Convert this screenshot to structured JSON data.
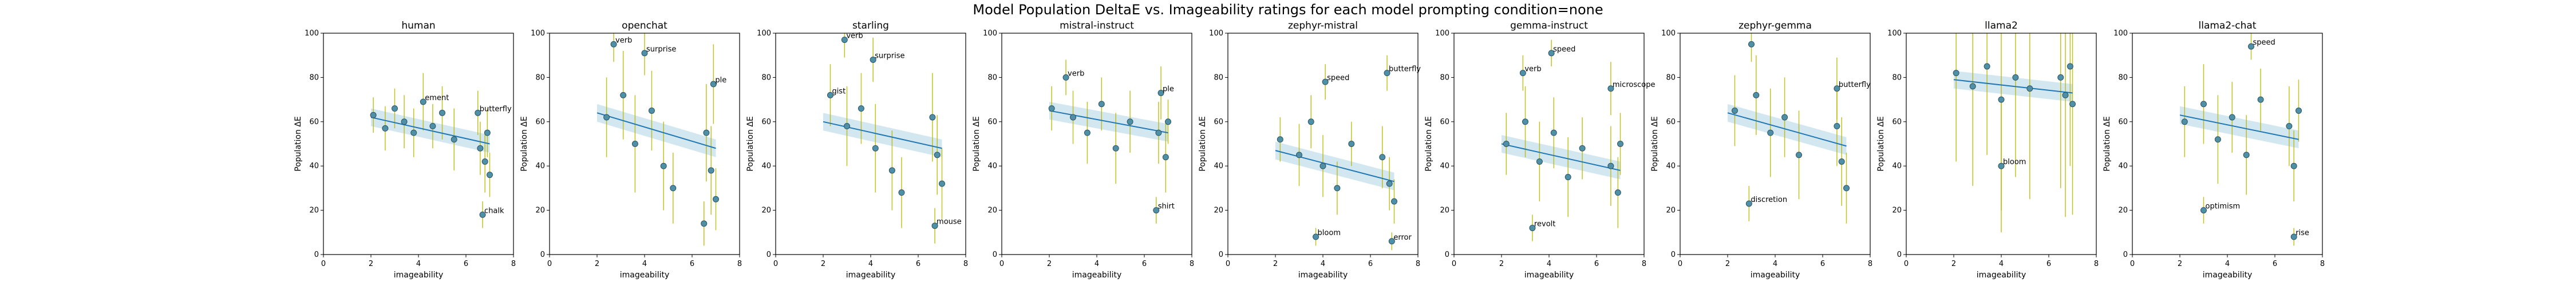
{
  "figure": {
    "suptitle": "Model Population DeltaE vs. Imageability ratings for each model prompting condition=none"
  },
  "colors": {
    "point": "#4f90a6",
    "point_edge": "#2b5566",
    "errorbar": "#b8b800",
    "fit_line": "#1f77b4",
    "ci_band": "#9ecae1"
  },
  "chart_data": [
    {
      "type": "scatter",
      "title": "human",
      "xlabel": "imageability",
      "ylabel": "Population ΔE",
      "xlim": [
        0,
        8
      ],
      "ylim": [
        0,
        100
      ],
      "xticks": [
        "0",
        "2",
        "4",
        "6",
        "8"
      ],
      "yticks": [
        "0",
        "20",
        "40",
        "60",
        "80",
        "100"
      ],
      "fit": {
        "x": [
          2,
          7
        ],
        "y": [
          62,
          50
        ]
      },
      "points": [
        {
          "word": "",
          "x": 2.1,
          "y": 63,
          "err": 8
        },
        {
          "word": "",
          "x": 2.6,
          "y": 57,
          "err": 10
        },
        {
          "word": "",
          "x": 3.0,
          "y": 66,
          "err": 9
        },
        {
          "word": "",
          "x": 3.4,
          "y": 60,
          "err": 12
        },
        {
          "word": "",
          "x": 3.8,
          "y": 55,
          "err": 11
        },
        {
          "word": "ement",
          "x": 4.2,
          "y": 69,
          "err": 13
        },
        {
          "word": "",
          "x": 4.6,
          "y": 58,
          "err": 10
        },
        {
          "word": "",
          "x": 5.0,
          "y": 64,
          "err": 12
        },
        {
          "word": "",
          "x": 5.5,
          "y": 52,
          "err": 14
        },
        {
          "word": "butterfly",
          "x": 6.5,
          "y": 64,
          "err": 10
        },
        {
          "word": "",
          "x": 6.6,
          "y": 48,
          "err": 12
        },
        {
          "word": "",
          "x": 6.8,
          "y": 42,
          "err": 14
        },
        {
          "word": "",
          "x": 6.9,
          "y": 55,
          "err": 11
        },
        {
          "word": "",
          "x": 7.0,
          "y": 36,
          "err": 10
        },
        {
          "word": "chalk",
          "x": 6.7,
          "y": 18,
          "err": 6
        }
      ]
    },
    {
      "type": "scatter",
      "title": "openchat",
      "xlabel": "imageability",
      "ylabel": "Population ΔE",
      "xlim": [
        0,
        8
      ],
      "ylim": [
        0,
        100
      ],
      "xticks": [
        "0",
        "2",
        "4",
        "6",
        "8"
      ],
      "yticks": [
        "0",
        "20",
        "40",
        "60",
        "80",
        "100"
      ],
      "fit": {
        "x": [
          2,
          7
        ],
        "y": [
          64,
          48
        ]
      },
      "points": [
        {
          "word": "verb",
          "x": 2.7,
          "y": 95,
          "err": 8
        },
        {
          "word": "surprise",
          "x": 4.0,
          "y": 91,
          "err": 10
        },
        {
          "word": "",
          "x": 2.4,
          "y": 62,
          "err": 18
        },
        {
          "word": "",
          "x": 3.1,
          "y": 72,
          "err": 20
        },
        {
          "word": "",
          "x": 3.6,
          "y": 50,
          "err": 22
        },
        {
          "word": "",
          "x": 4.3,
          "y": 65,
          "err": 18
        },
        {
          "word": "",
          "x": 4.8,
          "y": 40,
          "err": 20
        },
        {
          "word": "",
          "x": 5.2,
          "y": 30,
          "err": 16
        },
        {
          "word": "ple",
          "x": 6.9,
          "y": 77,
          "err": 18
        },
        {
          "word": "",
          "x": 6.6,
          "y": 55,
          "err": 22
        },
        {
          "word": "",
          "x": 6.8,
          "y": 38,
          "err": 20
        },
        {
          "word": "",
          "x": 7.0,
          "y": 25,
          "err": 14
        },
        {
          "word": "",
          "x": 6.5,
          "y": 14,
          "err": 10
        }
      ]
    },
    {
      "type": "scatter",
      "title": "starling",
      "xlabel": "imageability",
      "ylabel": "Population ΔE",
      "xlim": [
        0,
        8
      ],
      "ylim": [
        0,
        100
      ],
      "xticks": [
        "0",
        "2",
        "4",
        "6",
        "8"
      ],
      "yticks": [
        "0",
        "20",
        "40",
        "60",
        "80",
        "100"
      ],
      "fit": {
        "x": [
          2,
          7
        ],
        "y": [
          60,
          48
        ]
      },
      "points": [
        {
          "word": "verb",
          "x": 2.9,
          "y": 97,
          "err": 8
        },
        {
          "word": "surprise",
          "x": 4.1,
          "y": 88,
          "err": 10
        },
        {
          "word": "gist",
          "x": 2.3,
          "y": 72,
          "err": 14
        },
        {
          "word": "",
          "x": 3.0,
          "y": 58,
          "err": 18
        },
        {
          "word": "",
          "x": 3.6,
          "y": 66,
          "err": 16
        },
        {
          "word": "",
          "x": 4.2,
          "y": 48,
          "err": 20
        },
        {
          "word": "",
          "x": 4.9,
          "y": 38,
          "err": 18
        },
        {
          "word": "",
          "x": 5.3,
          "y": 28,
          "err": 16
        },
        {
          "word": "",
          "x": 6.6,
          "y": 62,
          "err": 20
        },
        {
          "word": "",
          "x": 6.8,
          "y": 45,
          "err": 18
        },
        {
          "word": "",
          "x": 7.0,
          "y": 32,
          "err": 16
        },
        {
          "word": "mouse",
          "x": 6.7,
          "y": 13,
          "err": 8
        }
      ]
    },
    {
      "type": "scatter",
      "title": "mistral-instruct",
      "xlabel": "imageability",
      "ylabel": "Population ΔE",
      "xlim": [
        0,
        8
      ],
      "ylim": [
        0,
        100
      ],
      "xticks": [
        "0",
        "2",
        "4",
        "6",
        "8"
      ],
      "yticks": [
        "0",
        "20",
        "40",
        "60",
        "80",
        "100"
      ],
      "fit": {
        "x": [
          2,
          7
        ],
        "y": [
          65,
          55
        ]
      },
      "points": [
        {
          "word": "verb",
          "x": 2.7,
          "y": 80,
          "err": 8
        },
        {
          "word": "",
          "x": 2.1,
          "y": 66,
          "err": 10
        },
        {
          "word": "",
          "x": 3.0,
          "y": 62,
          "err": 12
        },
        {
          "word": "",
          "x": 3.6,
          "y": 55,
          "err": 14
        },
        {
          "word": "",
          "x": 4.2,
          "y": 68,
          "err": 12
        },
        {
          "word": "",
          "x": 4.8,
          "y": 48,
          "err": 16
        },
        {
          "word": "",
          "x": 5.4,
          "y": 60,
          "err": 14
        },
        {
          "word": "ple",
          "x": 6.7,
          "y": 73,
          "err": 12
        },
        {
          "word": "",
          "x": 6.6,
          "y": 55,
          "err": 14
        },
        {
          "word": "",
          "x": 6.9,
          "y": 44,
          "err": 16
        },
        {
          "word": "",
          "x": 7.0,
          "y": 60,
          "err": 10
        },
        {
          "word": "shirt",
          "x": 6.5,
          "y": 20,
          "err": 6
        }
      ]
    },
    {
      "type": "scatter",
      "title": "zephyr-mistral",
      "xlabel": "imageability",
      "ylabel": "Population ΔE",
      "xlim": [
        0,
        8
      ],
      "ylim": [
        0,
        100
      ],
      "xticks": [
        "0",
        "2",
        "4",
        "6",
        "8"
      ],
      "yticks": [
        "0",
        "20",
        "40",
        "60",
        "80",
        "100"
      ],
      "fit": {
        "x": [
          2,
          7
        ],
        "y": [
          47,
          33
        ]
      },
      "points": [
        {
          "word": "speed",
          "x": 4.1,
          "y": 78,
          "err": 8
        },
        {
          "word": "butterfly",
          "x": 6.7,
          "y": 82,
          "err": 8
        },
        {
          "word": "",
          "x": 2.2,
          "y": 52,
          "err": 10
        },
        {
          "word": "",
          "x": 3.0,
          "y": 45,
          "err": 14
        },
        {
          "word": "",
          "x": 3.5,
          "y": 60,
          "err": 12
        },
        {
          "word": "",
          "x": 4.0,
          "y": 40,
          "err": 14
        },
        {
          "word": "",
          "x": 4.6,
          "y": 30,
          "err": 12
        },
        {
          "word": "",
          "x": 5.2,
          "y": 50,
          "err": 10
        },
        {
          "word": "",
          "x": 6.5,
          "y": 44,
          "err": 14
        },
        {
          "word": "",
          "x": 6.8,
          "y": 32,
          "err": 12
        },
        {
          "word": "",
          "x": 7.0,
          "y": 24,
          "err": 10
        },
        {
          "word": "bloom",
          "x": 3.7,
          "y": 8,
          "err": 4
        },
        {
          "word": "error",
          "x": 6.9,
          "y": 6,
          "err": 4
        }
      ]
    },
    {
      "type": "scatter",
      "title": "gemma-instruct",
      "xlabel": "imageability",
      "ylabel": "Population ΔE",
      "xlim": [
        0,
        8
      ],
      "ylim": [
        0,
        100
      ],
      "xticks": [
        "0",
        "2",
        "4",
        "6",
        "8"
      ],
      "yticks": [
        "0",
        "20",
        "40",
        "60",
        "80",
        "100"
      ],
      "fit": {
        "x": [
          2,
          7
        ],
        "y": [
          50,
          38
        ]
      },
      "points": [
        {
          "word": "speed",
          "x": 4.1,
          "y": 91,
          "err": 6
        },
        {
          "word": "verb",
          "x": 2.9,
          "y": 82,
          "err": 8
        },
        {
          "word": "",
          "x": 2.2,
          "y": 50,
          "err": 14
        },
        {
          "word": "",
          "x": 3.0,
          "y": 60,
          "err": 16
        },
        {
          "word": "",
          "x": 3.6,
          "y": 42,
          "err": 18
        },
        {
          "word": "",
          "x": 4.2,
          "y": 55,
          "err": 16
        },
        {
          "word": "",
          "x": 4.8,
          "y": 35,
          "err": 18
        },
        {
          "word": "",
          "x": 5.4,
          "y": 48,
          "err": 14
        },
        {
          "word": "microscope",
          "x": 6.6,
          "y": 75,
          "err": 12
        },
        {
          "word": "",
          "x": 6.6,
          "y": 40,
          "err": 18
        },
        {
          "word": "",
          "x": 6.9,
          "y": 28,
          "err": 16
        },
        {
          "word": "",
          "x": 7.0,
          "y": 50,
          "err": 14
        },
        {
          "word": "revolt",
          "x": 3.3,
          "y": 12,
          "err": 6
        }
      ]
    },
    {
      "type": "scatter",
      "title": "zephyr-gemma",
      "xlabel": "imageability",
      "ylabel": "Population ΔE",
      "xlim": [
        0,
        8
      ],
      "ylim": [
        0,
        100
      ],
      "xticks": [
        "0",
        "2",
        "4",
        "6",
        "8"
      ],
      "yticks": [
        "0",
        "20",
        "40",
        "60",
        "80",
        "100"
      ],
      "fit": {
        "x": [
          2,
          7
        ],
        "y": [
          64,
          49
        ]
      },
      "points": [
        {
          "word": "butterfly",
          "x": 6.6,
          "y": 75,
          "err": 14
        },
        {
          "word": "",
          "x": 3.0,
          "y": 95,
          "err": 8
        },
        {
          "word": "",
          "x": 2.3,
          "y": 65,
          "err": 16
        },
        {
          "word": "",
          "x": 3.2,
          "y": 72,
          "err": 18
        },
        {
          "word": "",
          "x": 3.8,
          "y": 55,
          "err": 20
        },
        {
          "word": "",
          "x": 4.4,
          "y": 62,
          "err": 18
        },
        {
          "word": "",
          "x": 5.0,
          "y": 45,
          "err": 20
        },
        {
          "word": "",
          "x": 6.6,
          "y": 58,
          "err": 18
        },
        {
          "word": "",
          "x": 6.8,
          "y": 42,
          "err": 20
        },
        {
          "word": "",
          "x": 7.0,
          "y": 30,
          "err": 16
        },
        {
          "word": "discretion",
          "x": 2.9,
          "y": 23,
          "err": 8
        }
      ]
    },
    {
      "type": "scatter",
      "title": "llama2",
      "xlabel": "imageability",
      "ylabel": "Population ΔE",
      "xlim": [
        0,
        8
      ],
      "ylim": [
        0,
        100
      ],
      "xticks": [
        "0",
        "2",
        "4",
        "6",
        "8"
      ],
      "yticks": [
        "0",
        "20",
        "40",
        "60",
        "80",
        "100"
      ],
      "fit": {
        "x": [
          2,
          7
        ],
        "y": [
          79,
          73
        ]
      },
      "points": [
        {
          "word": "",
          "x": 2.1,
          "y": 82,
          "err": 40
        },
        {
          "word": "",
          "x": 2.8,
          "y": 76,
          "err": 45
        },
        {
          "word": "",
          "x": 3.4,
          "y": 85,
          "err": 40
        },
        {
          "word": "",
          "x": 4.0,
          "y": 70,
          "err": 50
        },
        {
          "word": "",
          "x": 4.6,
          "y": 80,
          "err": 45
        },
        {
          "word": "",
          "x": 5.2,
          "y": 75,
          "err": 50
        },
        {
          "word": "",
          "x": 6.5,
          "y": 80,
          "err": 50
        },
        {
          "word": "",
          "x": 6.7,
          "y": 72,
          "err": 55
        },
        {
          "word": "",
          "x": 6.9,
          "y": 85,
          "err": 45
        },
        {
          "word": "",
          "x": 7.0,
          "y": 68,
          "err": 50
        },
        {
          "word": "bloom",
          "x": 4.0,
          "y": 40,
          "err": 30
        }
      ]
    },
    {
      "type": "scatter",
      "title": "llama2-chat",
      "xlabel": "imageability",
      "ylabel": "Population ΔE",
      "xlim": [
        0,
        8
      ],
      "ylim": [
        0,
        100
      ],
      "xticks": [
        "0",
        "2",
        "4",
        "6",
        "8"
      ],
      "yticks": [
        "0",
        "20",
        "40",
        "60",
        "80",
        "100"
      ],
      "fit": {
        "x": [
          2,
          7
        ],
        "y": [
          63,
          52
        ]
      },
      "points": [
        {
          "word": "speed",
          "x": 5.0,
          "y": 94,
          "err": 6
        },
        {
          "word": "",
          "x": 2.2,
          "y": 60,
          "err": 16
        },
        {
          "word": "",
          "x": 3.0,
          "y": 68,
          "err": 18
        },
        {
          "word": "",
          "x": 3.6,
          "y": 52,
          "err": 20
        },
        {
          "word": "",
          "x": 4.2,
          "y": 62,
          "err": 16
        },
        {
          "word": "",
          "x": 4.8,
          "y": 45,
          "err": 18
        },
        {
          "word": "",
          "x": 5.4,
          "y": 70,
          "err": 14
        },
        {
          "word": "",
          "x": 6.6,
          "y": 58,
          "err": 18
        },
        {
          "word": "",
          "x": 6.8,
          "y": 40,
          "err": 16
        },
        {
          "word": "",
          "x": 7.0,
          "y": 65,
          "err": 14
        },
        {
          "word": "optimism",
          "x": 3.0,
          "y": 20,
          "err": 6
        },
        {
          "word": "rise",
          "x": 6.8,
          "y": 8,
          "err": 4
        }
      ]
    }
  ]
}
